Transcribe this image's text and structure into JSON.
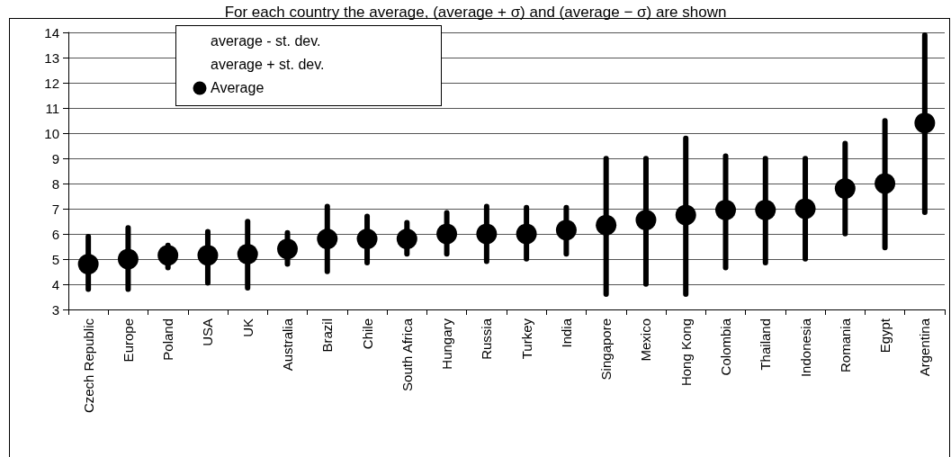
{
  "chart_data": {
    "type": "scatter",
    "title": "For each country the average, (average + σ) and (average − σ) are shown",
    "categories": [
      "Czech Republic",
      "Europe",
      "Poland",
      "USA",
      "UK",
      "Australia",
      "Brazil",
      "Chile",
      "South Africa",
      "Hungary",
      "Russia",
      "Turkey",
      "India",
      "Singapore",
      "Mexico",
      "Hong Kong",
      "Colombia",
      "Thailand",
      "Indonesia",
      "Romania",
      "Egypt",
      "Argentina"
    ],
    "series": [
      {
        "name": "average - st. dev.",
        "marker": "none",
        "values": [
          null,
          null,
          null,
          null,
          null,
          null,
          null,
          null,
          null,
          null,
          null,
          null,
          null,
          null,
          null,
          null,
          null,
          null,
          null,
          null,
          null,
          null
        ]
      },
      {
        "name": "average + st. dev.",
        "marker": "none",
        "values": [
          null,
          null,
          null,
          null,
          null,
          null,
          null,
          null,
          null,
          null,
          null,
          null,
          null,
          null,
          null,
          null,
          null,
          null,
          null,
          null,
          null,
          null
        ]
      },
      {
        "type": "bar",
        "color": "#000000",
        "base": [
          3.7,
          3.7,
          4.55,
          3.95,
          3.75,
          4.7,
          4.4,
          4.75,
          5.1,
          5.1,
          4.8,
          4.9,
          5.1,
          3.5,
          3.9,
          3.5,
          4.55,
          4.75,
          4.9,
          5.9,
          5.35,
          6.75
        ],
        "values": [
          2.3,
          2.65,
          1.1,
          2.25,
          2.85,
          1.45,
          2.8,
          2.05,
          1.45,
          1.85,
          2.4,
          2.25,
          2.05,
          5.6,
          5.2,
          6.4,
          4.65,
          4.35,
          4.2,
          3.8,
          5.25,
          7.25
        ]
      },
      {
        "name": "Average",
        "color": "#000000",
        "marker": "circle",
        "values": [
          4.8,
          5.0,
          5.15,
          5.15,
          5.2,
          5.4,
          5.8,
          5.8,
          5.8,
          6.0,
          6.0,
          6.0,
          6.15,
          6.35,
          6.55,
          6.75,
          6.95,
          6.95,
          7.0,
          7.8,
          8.0,
          10.4
        ]
      }
    ],
    "ylim": [
      3,
      14
    ],
    "yticks": [
      3,
      4,
      5,
      6,
      7,
      8,
      9,
      10,
      11,
      12,
      13,
      14
    ],
    "grid": "y",
    "legend": "top left"
  }
}
